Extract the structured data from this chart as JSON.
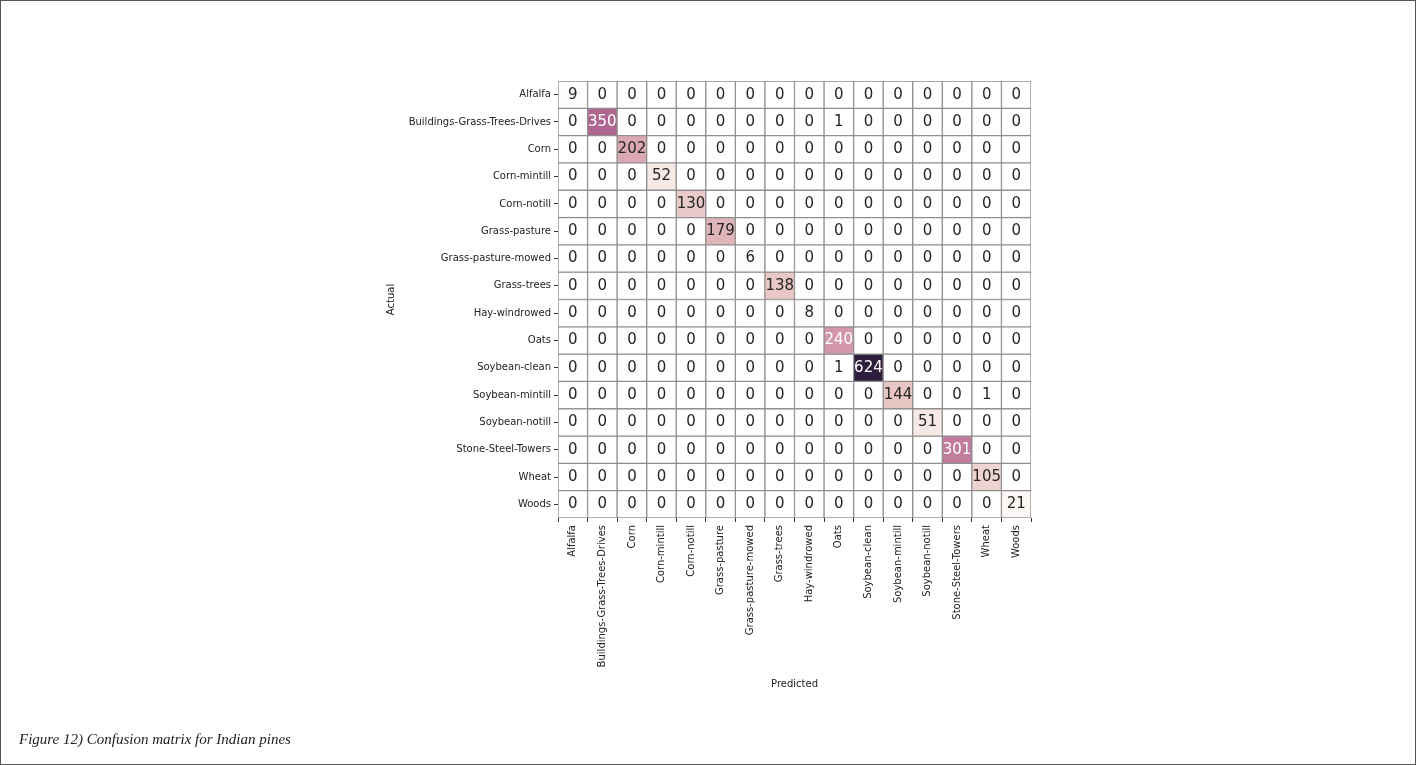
{
  "chart_data": {
    "type": "heatmap",
    "xlabel": "Predicted",
    "ylabel": "Actual",
    "categories": [
      "Alfalfa",
      "Buildings-Grass-Trees-Drives",
      "Corn",
      "Corn-mintill",
      "Corn-notill",
      "Grass-pasture",
      "Grass-pasture-mowed",
      "Grass-trees",
      "Hay-windrowed",
      "Oats",
      "Soybean-clean",
      "Soybean-mintill",
      "Soybean-notill",
      "Stone-Steel-Towers",
      "Wheat",
      "Woods"
    ],
    "y_categories": [
      "Alfalfa",
      "Buildings-Grass-Trees-Drives",
      "Corn",
      "Corn-mintill",
      "Corn-notill",
      "Grass-pasture",
      "Grass-pasture-mowed",
      "Grass-trees",
      "Hay-windrowed",
      "Oats",
      "Soybean-clean",
      "Soybean-mintill",
      "Soybean-notill",
      "Stone-Steel-Towers",
      "Wheat",
      "Woods"
    ],
    "cells": [
      [
        9,
        0,
        0,
        0,
        0,
        0,
        0,
        0,
        0,
        0,
        0,
        0,
        0,
        0,
        0,
        0
      ],
      [
        0,
        350,
        0,
        0,
        0,
        0,
        0,
        0,
        0,
        1,
        0,
        0,
        0,
        0,
        0,
        0
      ],
      [
        0,
        0,
        202,
        0,
        0,
        0,
        0,
        0,
        0,
        0,
        0,
        0,
        0,
        0,
        0,
        0
      ],
      [
        0,
        0,
        0,
        52,
        0,
        0,
        0,
        0,
        0,
        0,
        0,
        0,
        0,
        0,
        0,
        0
      ],
      [
        0,
        0,
        0,
        0,
        130,
        0,
        0,
        0,
        0,
        0,
        0,
        0,
        0,
        0,
        0,
        0
      ],
      [
        0,
        0,
        0,
        0,
        0,
        179,
        0,
        0,
        0,
        0,
        0,
        0,
        0,
        0,
        0,
        0
      ],
      [
        0,
        0,
        0,
        0,
        0,
        0,
        6,
        0,
        0,
        0,
        0,
        0,
        0,
        0,
        0,
        0
      ],
      [
        0,
        0,
        0,
        0,
        0,
        0,
        0,
        138,
        0,
        0,
        0,
        0,
        0,
        0,
        0,
        0
      ],
      [
        0,
        0,
        0,
        0,
        0,
        0,
        0,
        0,
        8,
        0,
        0,
        0,
        0,
        0,
        0,
        0
      ],
      [
        0,
        0,
        0,
        0,
        0,
        0,
        0,
        0,
        0,
        240,
        0,
        0,
        0,
        0,
        0,
        0
      ],
      [
        0,
        0,
        0,
        0,
        0,
        0,
        0,
        0,
        0,
        1,
        624,
        0,
        0,
        0,
        0,
        0
      ],
      [
        0,
        0,
        0,
        0,
        0,
        0,
        0,
        0,
        0,
        0,
        0,
        144,
        0,
        0,
        1,
        0
      ],
      [
        0,
        0,
        0,
        0,
        0,
        0,
        0,
        0,
        0,
        0,
        0,
        0,
        51,
        0,
        0,
        0
      ],
      [
        0,
        0,
        0,
        0,
        0,
        0,
        0,
        0,
        0,
        0,
        0,
        0,
        0,
        301,
        0,
        0
      ],
      [
        0,
        0,
        0,
        0,
        0,
        0,
        0,
        0,
        0,
        0,
        0,
        0,
        0,
        0,
        105,
        0
      ],
      [
        0,
        0,
        0,
        0,
        0,
        0,
        0,
        0,
        0,
        0,
        0,
        0,
        0,
        0,
        0,
        21
      ]
    ],
    "data_labels": true,
    "annotations": [
      "Figure 12) Confusion matrix for Indian pines"
    ]
  }
}
